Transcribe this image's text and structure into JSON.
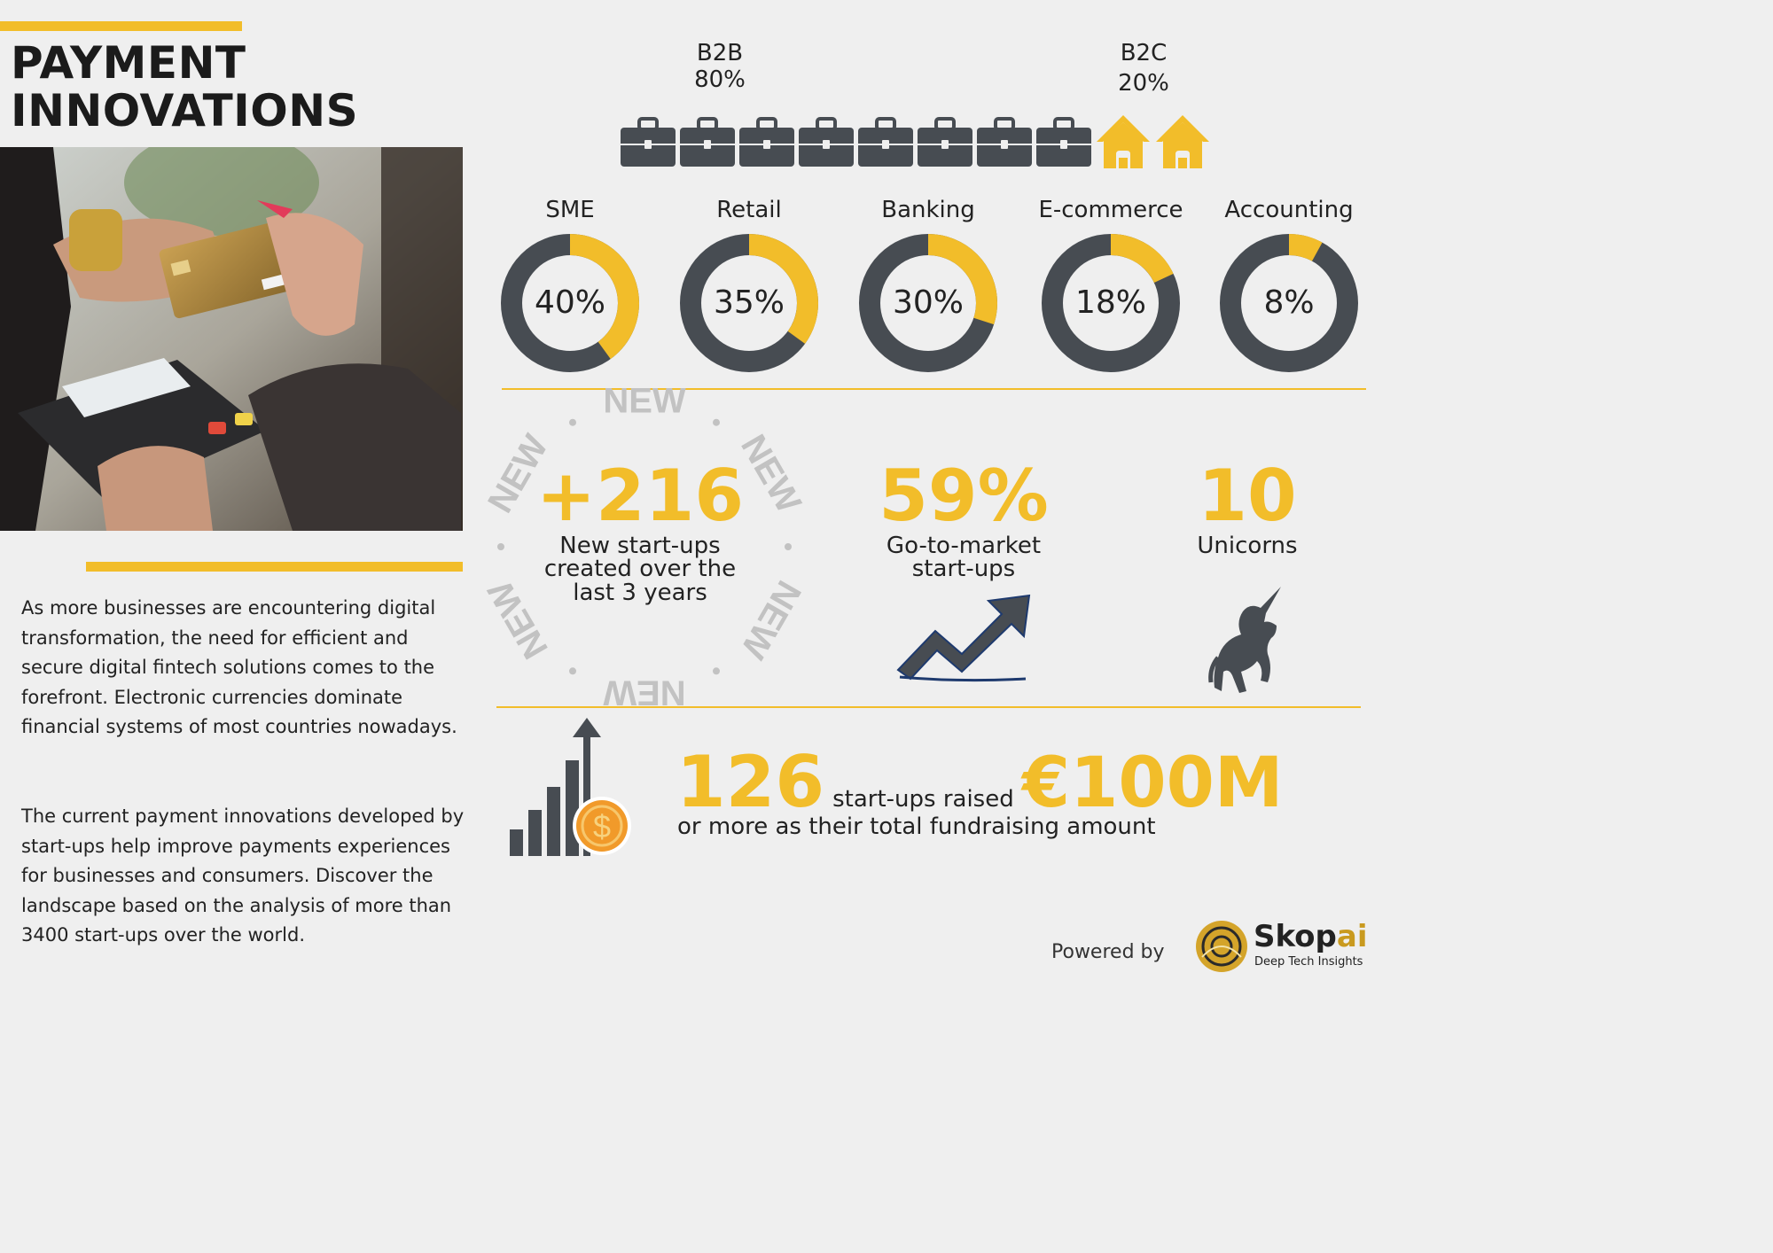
{
  "title": {
    "line1": "PAYMENT",
    "line2": "INNOVATIONS"
  },
  "paragraphs": {
    "p1": "As more businesses are encountering digital transformation, the need for efficient and secure digital fintech solutions comes to the forefront. Electronic currencies dominate financial systems of most countries nowadays.",
    "p2": "The current payment innovations developed by start-ups help improve payments experiences for businesses and consumers. Discover the landscape based on the analysis of more than 3400 start-ups over the world."
  },
  "segments": {
    "b2b": {
      "name": "B2B",
      "pct": "80%",
      "value": 80
    },
    "b2c": {
      "name": "B2C",
      "pct": "20%",
      "value": 20
    },
    "briefcase_icon": "briefcase-icon",
    "house_icon": "house-icon"
  },
  "sectors": [
    {
      "name": "SME",
      "label": "40%",
      "value": 40
    },
    {
      "name": "Retail",
      "label": "35%",
      "value": 35
    },
    {
      "name": "Banking",
      "label": "30%",
      "value": 30
    },
    {
      "name": "E-commerce",
      "label": "18%",
      "value": 18
    },
    {
      "name": "Accounting",
      "label": "8%",
      "value": 8
    }
  ],
  "stats": {
    "new": {
      "value": "+216",
      "line1": "New start-ups",
      "line2": "created over the",
      "line3": "last 3 years",
      "ring_word": "NEW"
    },
    "gtm": {
      "value": "59%",
      "line1": "Go-to-market",
      "line2": "start-ups"
    },
    "unicorns": {
      "value": "10",
      "line1": "Unicorns"
    }
  },
  "fundraising": {
    "count": "126",
    "middle": "start-ups raised",
    "amount": "€100M",
    "tail": "or more as their total fundraising amount",
    "coin_symbol": "$"
  },
  "footer": {
    "powered_by": "Powered by",
    "brand_a": "Skop",
    "brand_b": "ai",
    "tagline": "Deep Tech Insights"
  },
  "colors": {
    "accent": "#f2bd2a",
    "dark": "#474c52",
    "background": "#efefef",
    "coin": "#f19a2a"
  }
}
